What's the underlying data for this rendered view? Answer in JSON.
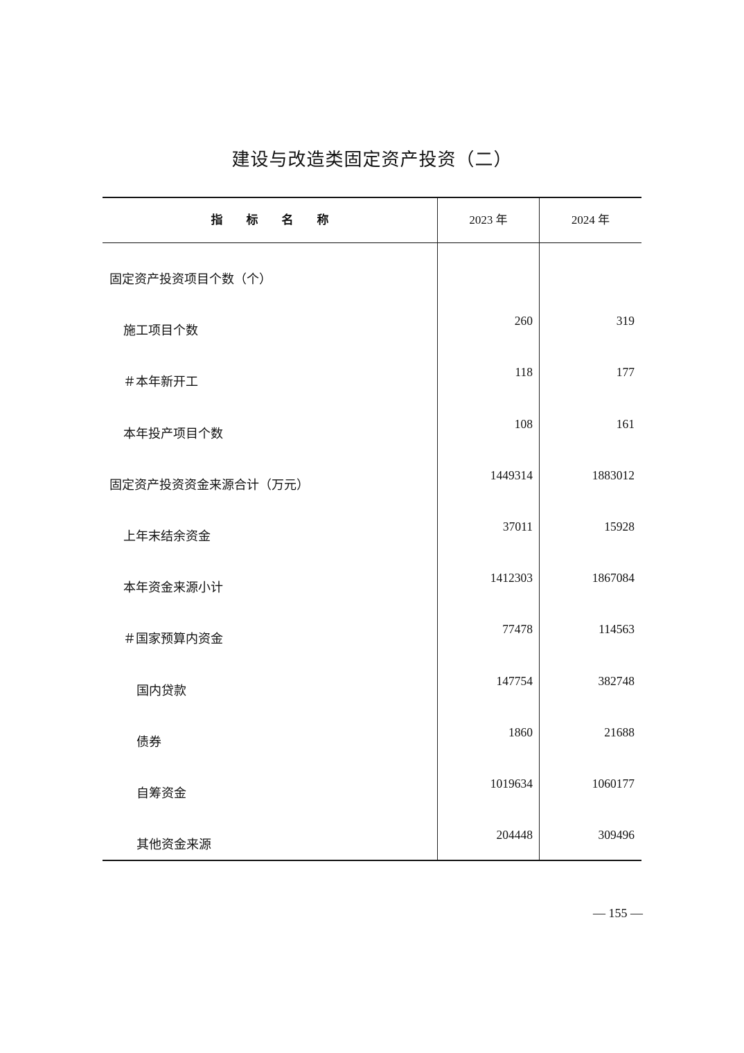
{
  "title": "建设与改造类固定资产投资（二）",
  "header": {
    "name_col": "指　　标　　名　　称",
    "col1": "2023 年",
    "col2": "2024 年"
  },
  "rows": [
    {
      "label": "固定资产投资项目个数（个）",
      "level": 0,
      "v2023": "",
      "v2024": ""
    },
    {
      "label": "施工项目个数",
      "level": 1,
      "v2023": "260",
      "v2024": "319"
    },
    {
      "label": "＃本年新开工",
      "level": 1,
      "v2023": "118",
      "v2024": "177"
    },
    {
      "label": "本年投产项目个数",
      "level": 1,
      "v2023": "108",
      "v2024": "161"
    },
    {
      "label": "固定资产投资资金来源合计（万元）",
      "level": 0,
      "v2023": "1449314",
      "v2024": "1883012"
    },
    {
      "label": "上年末结余资金",
      "level": 1,
      "v2023": "37011",
      "v2024": "15928"
    },
    {
      "label": "本年资金来源小计",
      "level": 1,
      "v2023": "1412303",
      "v2024": "1867084"
    },
    {
      "label": "＃国家预算内资金",
      "level": 1,
      "v2023": "77478",
      "v2024": "114563"
    },
    {
      "label": "国内贷款",
      "level": 2,
      "v2023": "147754",
      "v2024": "382748"
    },
    {
      "label": "债券",
      "level": 2,
      "v2023": "1860",
      "v2024": "21688"
    },
    {
      "label": "自筹资金",
      "level": 2,
      "v2023": "1019634",
      "v2024": "1060177"
    },
    {
      "label": "其他资金来源",
      "level": 2,
      "v2023": "204448",
      "v2024": "309496"
    }
  ],
  "page_number": "— 155 —"
}
